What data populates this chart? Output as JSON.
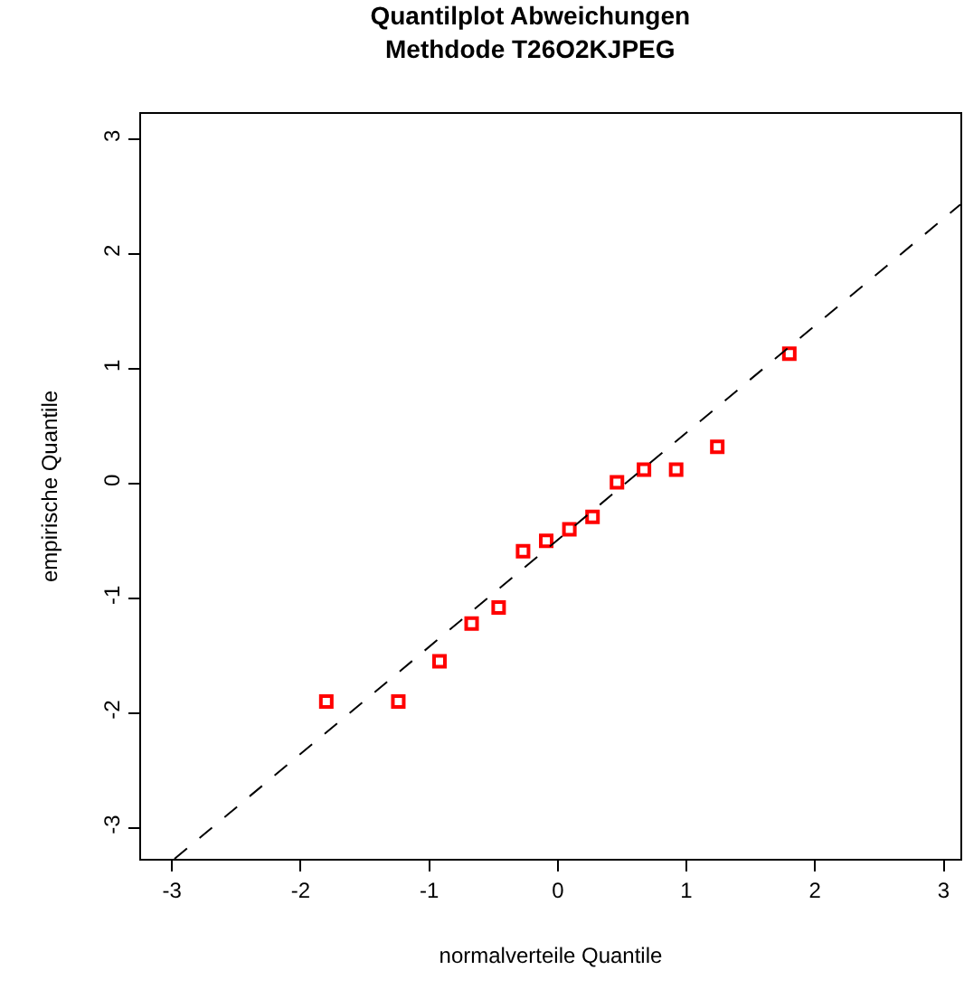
{
  "chart_data": {
    "type": "scatter",
    "title": "Quantilplot Abweichungen\nMethdode T26O2KJPEG",
    "xlabel": "normalverteile Quantile",
    "ylabel": "empirische Quantile",
    "xlim": [
      -3.24,
      3.13
    ],
    "ylim": [
      -3.27,
      3.22
    ],
    "xticks": [
      -3,
      -2,
      -1,
      0,
      1,
      2,
      3
    ],
    "yticks": [
      -3,
      -2,
      -1,
      0,
      1,
      2,
      3
    ],
    "series": [
      {
        "marker": "square",
        "color": "#ff0000",
        "x": [
          -1.8,
          -1.24,
          -0.92,
          -0.67,
          -0.46,
          -0.27,
          -0.09,
          0.09,
          0.27,
          0.46,
          0.67,
          0.92,
          1.24,
          1.8
        ],
        "values": [
          -1.9,
          -1.9,
          -1.55,
          -1.22,
          -1.08,
          -0.59,
          -0.5,
          -0.4,
          -0.29,
          0.01,
          0.12,
          0.12,
          0.32,
          1.13
        ]
      },
      {
        "type": "line",
        "marker": "none",
        "color": "#000000",
        "line_style": "dashed",
        "x": [
          -2.98,
          3.13
        ],
        "values": [
          -3.27,
          2.43
        ]
      }
    ]
  }
}
